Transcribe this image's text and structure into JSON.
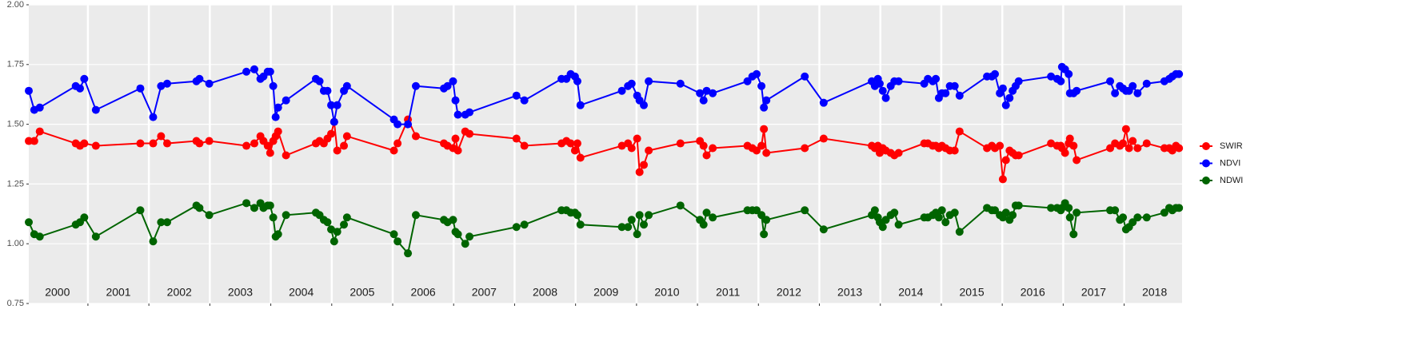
{
  "chart_data": {
    "type": "line",
    "x": [
      2000.03,
      2000.12,
      2000.21,
      2000.8,
      2000.87,
      2000.94,
      2001.13,
      2001.86,
      2002.07,
      2002.2,
      2002.3,
      2002.78,
      2002.83,
      2002.99,
      2003.6,
      2003.73,
      2003.83,
      2003.88,
      2003.95,
      2003.99,
      2004.04,
      2004.08,
      2004.12,
      2004.25,
      2004.74,
      2004.8,
      2004.87,
      2004.93,
      2004.99,
      2005.04,
      2005.09,
      2005.2,
      2005.25,
      2006.02,
      2006.08,
      2006.25,
      2006.38,
      2006.84,
      2006.9,
      2006.99,
      2007.03,
      2007.07,
      2007.19,
      2007.26,
      2008.03,
      2008.16,
      2008.77,
      2008.85,
      2008.92,
      2008.99,
      2009.03,
      2009.08,
      2009.76,
      2009.86,
      2009.92,
      2010.01,
      2010.05,
      2010.12,
      2010.2,
      2010.72,
      2011.04,
      2011.1,
      2011.15,
      2011.25,
      2011.82,
      2011.9,
      2011.97,
      2012.05,
      2012.09,
      2012.13,
      2012.76,
      2013.07,
      2013.86,
      2013.91,
      2013.96,
      2013.99,
      2014.04,
      2014.09,
      2014.17,
      2014.23,
      2014.3,
      2014.72,
      2014.78,
      2014.86,
      2014.91,
      2014.96,
      2015.01,
      2015.07,
      2015.14,
      2015.22,
      2015.3,
      2015.75,
      2015.83,
      2015.88,
      2015.96,
      2016.01,
      2016.06,
      2016.12,
      2016.17,
      2016.22,
      2016.27,
      2016.8,
      2016.9,
      2016.96,
      2016.98,
      2017.03,
      2017.09,
      2017.11,
      2017.17,
      2017.22,
      2017.77,
      2017.85,
      2017.93,
      2017.98,
      2018.03,
      2018.08,
      2018.14,
      2018.22,
      2018.37,
      2018.66,
      2018.74,
      2018.79,
      2018.85,
      2018.9
    ],
    "series": [
      {
        "name": "SWIR",
        "color": "#ff0000",
        "values": [
          1.43,
          1.43,
          1.47,
          1.42,
          1.41,
          1.42,
          1.41,
          1.42,
          1.42,
          1.45,
          1.42,
          1.43,
          1.42,
          1.43,
          1.41,
          1.42,
          1.45,
          1.43,
          1.41,
          1.38,
          1.43,
          1.45,
          1.47,
          1.37,
          1.42,
          1.43,
          1.42,
          1.44,
          1.46,
          1.51,
          1.39,
          1.41,
          1.45,
          1.39,
          1.42,
          1.52,
          1.45,
          1.42,
          1.41,
          1.4,
          1.44,
          1.39,
          1.47,
          1.46,
          1.44,
          1.41,
          1.42,
          1.43,
          1.42,
          1.39,
          1.42,
          1.36,
          1.41,
          1.42,
          1.4,
          1.44,
          1.3,
          1.33,
          1.39,
          1.42,
          1.43,
          1.41,
          1.37,
          1.4,
          1.41,
          1.4,
          1.39,
          1.41,
          1.48,
          1.38,
          1.4,
          1.44,
          1.41,
          1.4,
          1.41,
          1.38,
          1.4,
          1.39,
          1.38,
          1.37,
          1.38,
          1.42,
          1.42,
          1.41,
          1.41,
          1.4,
          1.41,
          1.4,
          1.39,
          1.39,
          1.47,
          1.4,
          1.41,
          1.4,
          1.41,
          1.27,
          1.35,
          1.39,
          1.38,
          1.37,
          1.37,
          1.42,
          1.41,
          1.41,
          1.4,
          1.38,
          1.42,
          1.44,
          1.41,
          1.35,
          1.4,
          1.42,
          1.41,
          1.42,
          1.48,
          1.4,
          1.43,
          1.4,
          1.42,
          1.4,
          1.4,
          1.39,
          1.41,
          1.4
        ]
      },
      {
        "name": "NDVI",
        "color": "#0000ff",
        "values": [
          1.64,
          1.56,
          1.57,
          1.66,
          1.65,
          1.69,
          1.56,
          1.65,
          1.53,
          1.66,
          1.67,
          1.68,
          1.69,
          1.67,
          1.72,
          1.73,
          1.69,
          1.7,
          1.72,
          1.72,
          1.66,
          1.53,
          1.57,
          1.6,
          1.69,
          1.68,
          1.64,
          1.64,
          1.58,
          1.51,
          1.58,
          1.64,
          1.66,
          1.52,
          1.5,
          1.5,
          1.66,
          1.65,
          1.66,
          1.68,
          1.6,
          1.54,
          1.54,
          1.55,
          1.62,
          1.6,
          1.69,
          1.69,
          1.71,
          1.7,
          1.68,
          1.58,
          1.64,
          1.66,
          1.67,
          1.62,
          1.6,
          1.58,
          1.68,
          1.67,
          1.63,
          1.6,
          1.64,
          1.63,
          1.68,
          1.7,
          1.71,
          1.66,
          1.57,
          1.6,
          1.7,
          1.59,
          1.68,
          1.66,
          1.69,
          1.67,
          1.64,
          1.61,
          1.66,
          1.68,
          1.68,
          1.67,
          1.69,
          1.68,
          1.69,
          1.61,
          1.63,
          1.63,
          1.66,
          1.66,
          1.62,
          1.7,
          1.7,
          1.71,
          1.63,
          1.65,
          1.58,
          1.61,
          1.64,
          1.66,
          1.68,
          1.7,
          1.69,
          1.68,
          1.74,
          1.73,
          1.71,
          1.63,
          1.63,
          1.64,
          1.68,
          1.63,
          1.66,
          1.65,
          1.64,
          1.64,
          1.66,
          1.63,
          1.67,
          1.68,
          1.69,
          1.7,
          1.71,
          1.71
        ]
      },
      {
        "name": "NDWI",
        "color": "#006400",
        "values": [
          1.09,
          1.04,
          1.03,
          1.08,
          1.09,
          1.11,
          1.03,
          1.14,
          1.01,
          1.09,
          1.09,
          1.16,
          1.15,
          1.12,
          1.17,
          1.15,
          1.17,
          1.15,
          1.16,
          1.16,
          1.11,
          1.03,
          1.04,
          1.12,
          1.13,
          1.12,
          1.1,
          1.09,
          1.06,
          1.01,
          1.05,
          1.08,
          1.11,
          1.04,
          1.01,
          0.96,
          1.12,
          1.1,
          1.09,
          1.1,
          1.05,
          1.04,
          1.0,
          1.03,
          1.07,
          1.08,
          1.14,
          1.14,
          1.13,
          1.13,
          1.12,
          1.08,
          1.07,
          1.07,
          1.1,
          1.04,
          1.12,
          1.08,
          1.12,
          1.16,
          1.1,
          1.08,
          1.13,
          1.11,
          1.14,
          1.14,
          1.14,
          1.12,
          1.04,
          1.1,
          1.14,
          1.06,
          1.12,
          1.14,
          1.11,
          1.09,
          1.07,
          1.1,
          1.12,
          1.13,
          1.08,
          1.11,
          1.11,
          1.12,
          1.13,
          1.11,
          1.14,
          1.09,
          1.12,
          1.13,
          1.05,
          1.15,
          1.14,
          1.14,
          1.12,
          1.11,
          1.13,
          1.1,
          1.12,
          1.16,
          1.16,
          1.15,
          1.15,
          1.14,
          1.15,
          1.17,
          1.15,
          1.11,
          1.04,
          1.13,
          1.14,
          1.14,
          1.1,
          1.11,
          1.06,
          1.07,
          1.09,
          1.11,
          1.11,
          1.13,
          1.15,
          1.14,
          1.15,
          1.15
        ]
      }
    ],
    "xlim": [
      2000.03,
      2018.95
    ],
    "xticks": [
      2001,
      2002,
      2003,
      2004,
      2005,
      2006,
      2007,
      2008,
      2009,
      2010,
      2011,
      2012,
      2013,
      2014,
      2015,
      2016,
      2017,
      2018
    ],
    "year_labels": [
      {
        "value": 2000.5,
        "label": "2000"
      },
      {
        "value": 2001.5,
        "label": "2001"
      },
      {
        "value": 2002.5,
        "label": "2002"
      },
      {
        "value": 2003.5,
        "label": "2003"
      },
      {
        "value": 2004.5,
        "label": "2004"
      },
      {
        "value": 2005.5,
        "label": "2005"
      },
      {
        "value": 2006.5,
        "label": "2006"
      },
      {
        "value": 2007.5,
        "label": "2007"
      },
      {
        "value": 2008.5,
        "label": "2008"
      },
      {
        "value": 2009.5,
        "label": "2009"
      },
      {
        "value": 2010.5,
        "label": "2010"
      },
      {
        "value": 2011.5,
        "label": "2011"
      },
      {
        "value": 2012.5,
        "label": "2012"
      },
      {
        "value": 2013.5,
        "label": "2013"
      },
      {
        "value": 2014.5,
        "label": "2014"
      },
      {
        "value": 2015.5,
        "label": "2015"
      },
      {
        "value": 2016.5,
        "label": "2016"
      },
      {
        "value": 2017.5,
        "label": "2017"
      },
      {
        "value": 2018.5,
        "label": "2018"
      }
    ],
    "ylim": [
      0.75,
      2.0
    ],
    "yticks": [
      0.75,
      {
        "value": 1.0,
        "label": "1.00"
      },
      1.25,
      {
        "value": 1.5,
        "label": "1.50"
      },
      1.75,
      {
        "value": 2.0,
        "label": "2.00"
      }
    ],
    "grid": true,
    "legend": "right"
  }
}
